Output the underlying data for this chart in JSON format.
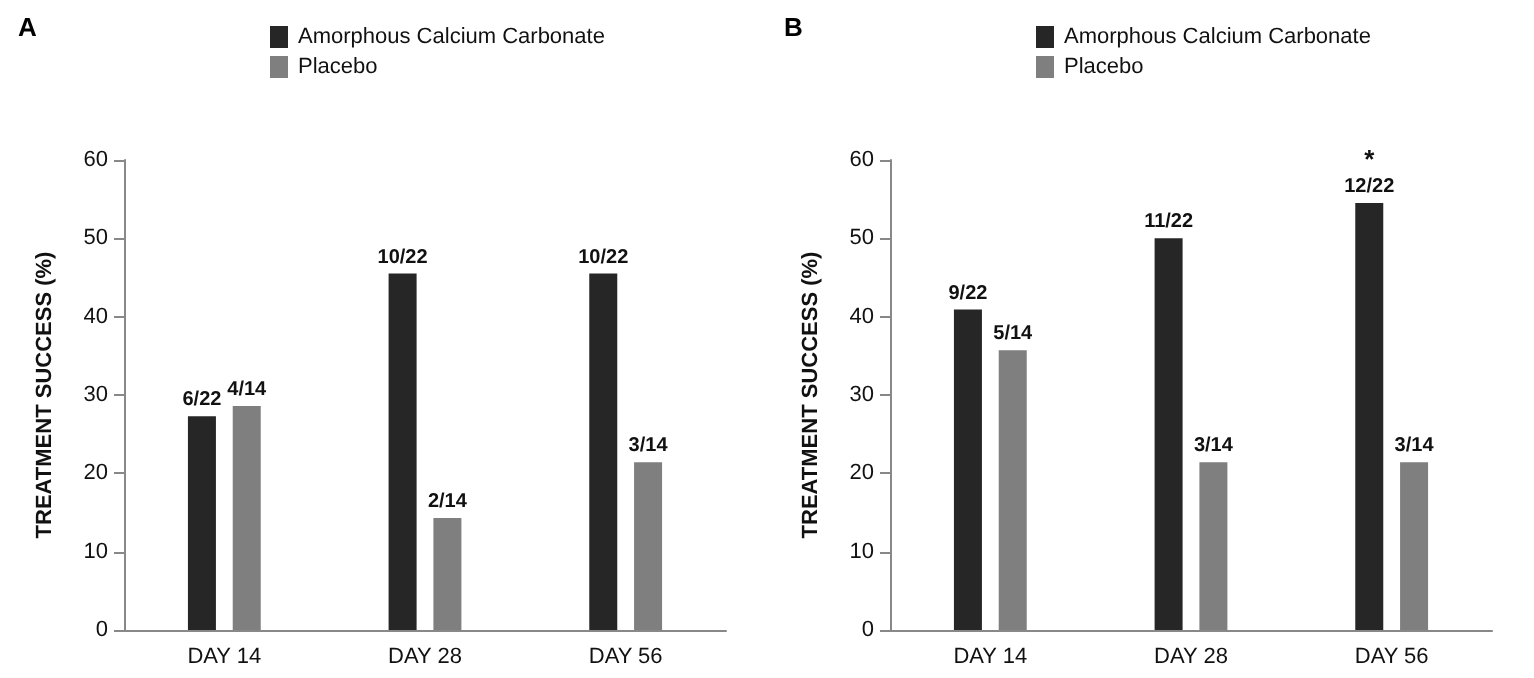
{
  "chart_data": [
    {
      "type": "bar",
      "title": "A",
      "ylabel": "TREATMENT SUCCESS (%)",
      "categories": [
        "DAY 14",
        "DAY 28",
        "DAY 56"
      ],
      "series": [
        {
          "name": "Amorphous Calcium Carbonate",
          "color": "#262626",
          "values": [
            27.3,
            45.5,
            45.5
          ],
          "value_labels": [
            "6/22",
            "10/22",
            "10/22"
          ]
        },
        {
          "name": "Placebo",
          "color": "#7f7f7f",
          "values": [
            28.6,
            14.3,
            21.4
          ],
          "value_labels": [
            "4/14",
            "2/14",
            "3/14"
          ]
        }
      ],
      "ylim": [
        0,
        60
      ],
      "yticks": [
        0,
        10,
        20,
        30,
        40,
        50,
        60
      ],
      "grid": false,
      "legend": "top right"
    },
    {
      "type": "bar",
      "title": "B",
      "ylabel": "TREATMENT SUCCESS (%)",
      "categories": [
        "DAY 14",
        "DAY 28",
        "DAY 56"
      ],
      "series": [
        {
          "name": "Amorphous Calcium Carbonate",
          "color": "#262626",
          "values": [
            40.9,
            50.0,
            54.5
          ],
          "value_labels": [
            "9/22",
            "11/22",
            "12/22"
          ]
        },
        {
          "name": "Placebo",
          "color": "#7f7f7f",
          "values": [
            35.7,
            21.4,
            21.4
          ],
          "value_labels": [
            "5/14",
            "3/14",
            "3/14"
          ]
        }
      ],
      "annotations": [
        {
          "text": "*",
          "x": "DAY 56",
          "y": 54.5
        }
      ],
      "ylim": [
        0,
        60
      ],
      "yticks": [
        0,
        10,
        20,
        30,
        40,
        50,
        60
      ],
      "grid": false,
      "legend": "top right"
    }
  ]
}
